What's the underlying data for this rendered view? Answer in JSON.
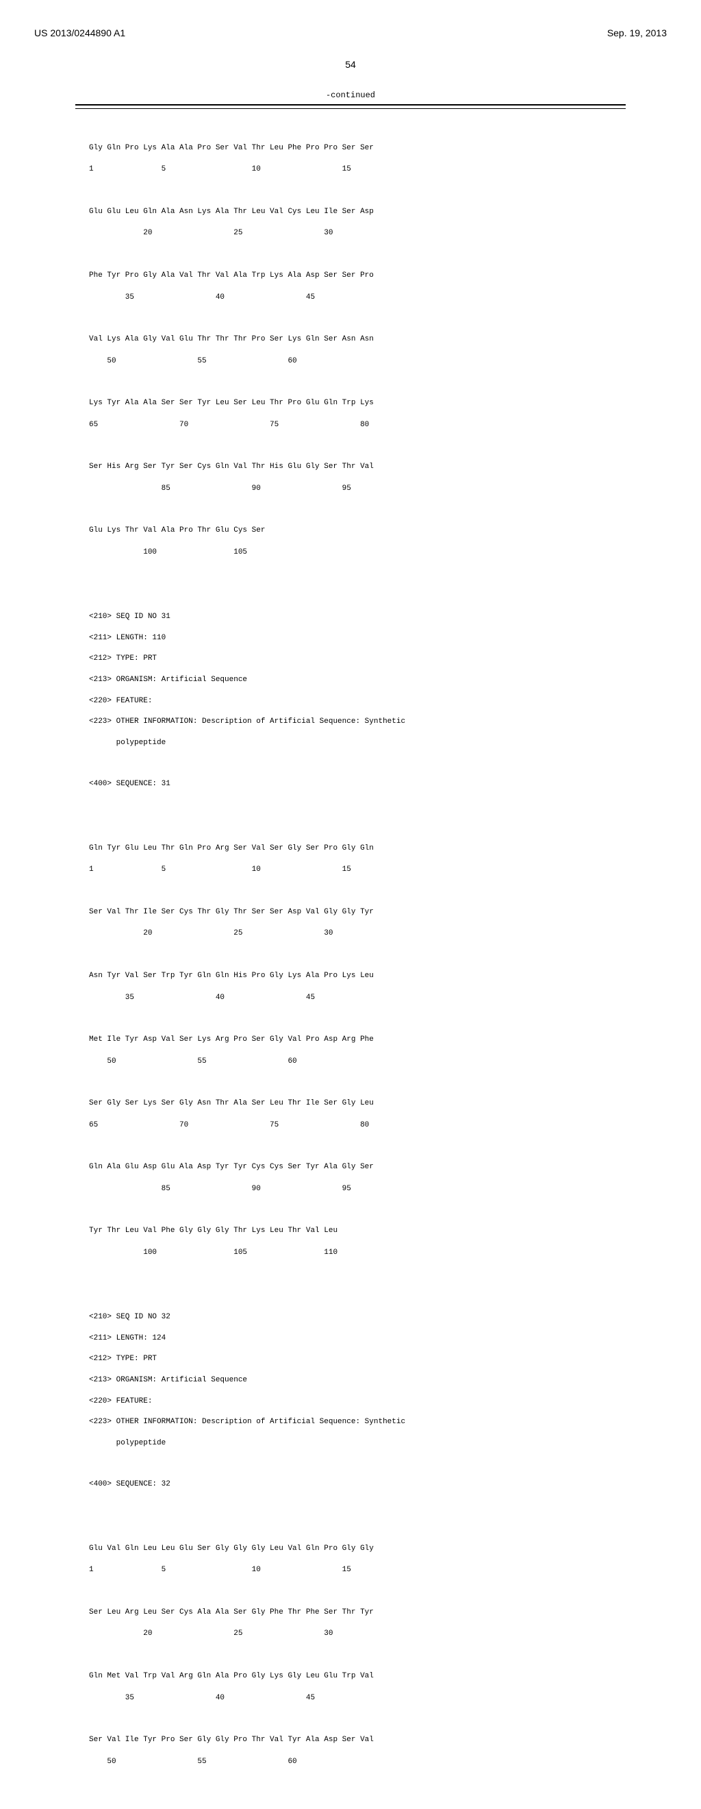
{
  "header": {
    "docNumber": "US 2013/0244890 A1",
    "date": "Sep. 19, 2013"
  },
  "pageNumber": "54",
  "continuedLabel": "-continued",
  "seq30_rows": [
    {
      "aa": "Gly Gln Pro Lys Ala Ala Pro Ser Val Thr Leu Phe Pro Pro Ser Ser",
      "nums": "1               5                   10                  15"
    },
    {
      "aa": "Glu Glu Leu Gln Ala Asn Lys Ala Thr Leu Val Cys Leu Ile Ser Asp",
      "nums": "            20                  25                  30"
    },
    {
      "aa": "Phe Tyr Pro Gly Ala Val Thr Val Ala Trp Lys Ala Asp Ser Ser Pro",
      "nums": "        35                  40                  45"
    },
    {
      "aa": "Val Lys Ala Gly Val Glu Thr Thr Thr Pro Ser Lys Gln Ser Asn Asn",
      "nums": "    50                  55                  60"
    },
    {
      "aa": "Lys Tyr Ala Ala Ser Ser Tyr Leu Ser Leu Thr Pro Glu Gln Trp Lys",
      "nums": "65                  70                  75                  80"
    },
    {
      "aa": "Ser His Arg Ser Tyr Ser Cys Gln Val Thr His Glu Gly Ser Thr Val",
      "nums": "                85                  90                  95"
    },
    {
      "aa": "Glu Lys Thr Val Ala Pro Thr Glu Cys Ser",
      "nums": "            100                 105"
    }
  ],
  "seq31_meta": {
    "l1": "<210> SEQ ID NO 31",
    "l2": "<211> LENGTH: 110",
    "l3": "<212> TYPE: PRT",
    "l4": "<213> ORGANISM: Artificial Sequence",
    "l5": "<220> FEATURE:",
    "l6": "<223> OTHER INFORMATION: Description of Artificial Sequence: Synthetic",
    "l7": "      polypeptide",
    "l8": "<400> SEQUENCE: 31"
  },
  "seq31_rows": [
    {
      "aa": "Gln Tyr Glu Leu Thr Gln Pro Arg Ser Val Ser Gly Ser Pro Gly Gln",
      "nums": "1               5                   10                  15"
    },
    {
      "aa": "Ser Val Thr Ile Ser Cys Thr Gly Thr Ser Ser Asp Val Gly Gly Tyr",
      "nums": "            20                  25                  30"
    },
    {
      "aa": "Asn Tyr Val Ser Trp Tyr Gln Gln His Pro Gly Lys Ala Pro Lys Leu",
      "nums": "        35                  40                  45"
    },
    {
      "aa": "Met Ile Tyr Asp Val Ser Lys Arg Pro Ser Gly Val Pro Asp Arg Phe",
      "nums": "    50                  55                  60"
    },
    {
      "aa": "Ser Gly Ser Lys Ser Gly Asn Thr Ala Ser Leu Thr Ile Ser Gly Leu",
      "nums": "65                  70                  75                  80"
    },
    {
      "aa": "Gln Ala Glu Asp Glu Ala Asp Tyr Tyr Cys Cys Ser Tyr Ala Gly Ser",
      "nums": "                85                  90                  95"
    },
    {
      "aa": "Tyr Thr Leu Val Phe Gly Gly Gly Thr Lys Leu Thr Val Leu",
      "nums": "            100                 105                 110"
    }
  ],
  "seq32_meta": {
    "l1": "<210> SEQ ID NO 32",
    "l2": "<211> LENGTH: 124",
    "l3": "<212> TYPE: PRT",
    "l4": "<213> ORGANISM: Artificial Sequence",
    "l5": "<220> FEATURE:",
    "l6": "<223> OTHER INFORMATION: Description of Artificial Sequence: Synthetic",
    "l7": "      polypeptide",
    "l8": "<400> SEQUENCE: 32"
  },
  "seq32_rows": [
    {
      "aa": "Glu Val Gln Leu Leu Glu Ser Gly Gly Gly Leu Val Gln Pro Gly Gly",
      "nums": "1               5                   10                  15"
    },
    {
      "aa": "Ser Leu Arg Leu Ser Cys Ala Ala Ser Gly Phe Thr Phe Ser Thr Tyr",
      "nums": "            20                  25                  30"
    },
    {
      "aa": "Gln Met Val Trp Val Arg Gln Ala Pro Gly Lys Gly Leu Glu Trp Val",
      "nums": "        35                  40                  45"
    },
    {
      "aa": "Ser Val Ile Tyr Pro Ser Gly Gly Pro Thr Val Tyr Ala Asp Ser Val",
      "nums": "    50                  55                  60"
    }
  ]
}
